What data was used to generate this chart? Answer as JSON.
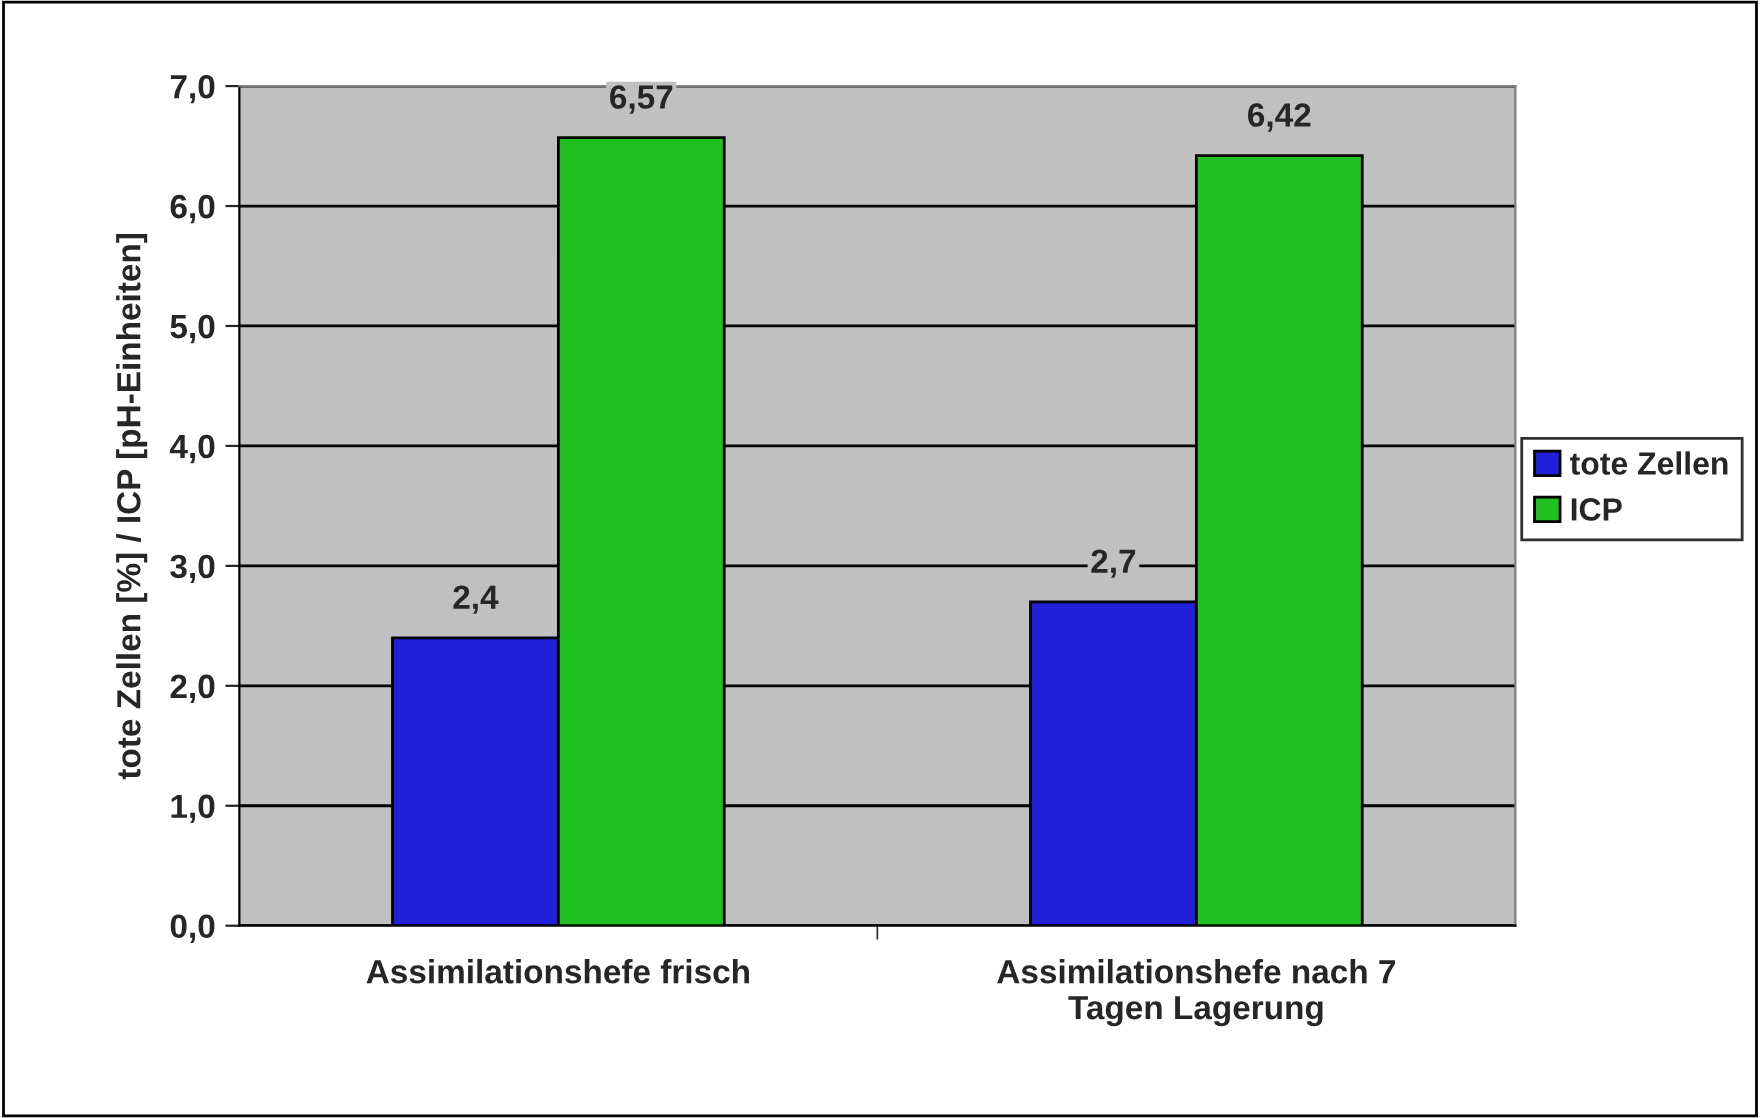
{
  "chart_data": {
    "type": "bar",
    "ylabel": "tote Zellen [%] / ICP [pH-Einheiten]",
    "categories": [
      "Assimilationshefe frisch",
      "Assimilationshefe nach 7\nTagen Lagerung"
    ],
    "series": [
      {
        "name": "tote Zellen",
        "color": "#2020d8",
        "values": [
          2.4,
          2.7
        ],
        "value_labels": [
          "2,4",
          "2,7"
        ]
      },
      {
        "name": "ICP",
        "color": "#20c020",
        "values": [
          6.57,
          6.42
        ],
        "value_labels": [
          "6,57",
          "6,42"
        ]
      }
    ],
    "ylim": [
      0,
      7
    ],
    "yticks": [
      {
        "value": 0,
        "label": "0,0"
      },
      {
        "value": 1,
        "label": "1,0"
      },
      {
        "value": 2,
        "label": "2,0"
      },
      {
        "value": 3,
        "label": "3,0"
      },
      {
        "value": 4,
        "label": "4,0"
      },
      {
        "value": 5,
        "label": "5,0"
      },
      {
        "value": 6,
        "label": "6,0"
      },
      {
        "value": 7,
        "label": "7,0"
      }
    ],
    "grid": "y",
    "legend": "right"
  }
}
